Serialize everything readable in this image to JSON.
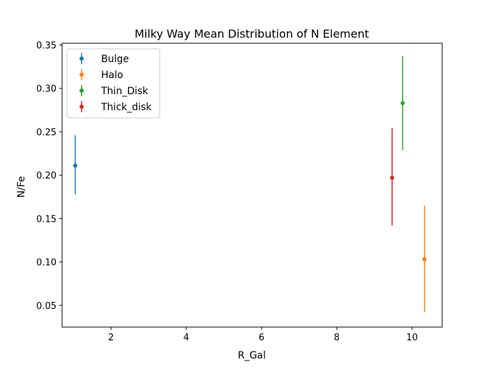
{
  "chart_data": {
    "type": "scatter",
    "title": "Milky Way Mean Distribution of N Element",
    "xlabel": "R_Gal",
    "ylabel": "N/Fe",
    "xlim": [
      0.7,
      10.8
    ],
    "ylim": [
      0.025,
      0.352
    ],
    "x_ticks": [
      2,
      4,
      6,
      8,
      10
    ],
    "x_tick_labels": [
      "2",
      "4",
      "6",
      "8",
      "10"
    ],
    "y_ticks": [
      0.05,
      0.1,
      0.15,
      0.2,
      0.25,
      0.3,
      0.35
    ],
    "y_tick_labels": [
      "0.05",
      "0.10",
      "0.15",
      "0.20",
      "0.25",
      "0.30",
      "0.35"
    ],
    "grid": false,
    "legend_position": "top-left",
    "series": [
      {
        "name": "Bulge",
        "color": "#1f77b4",
        "x": 1.05,
        "y": 0.211,
        "yerr_low": 0.178,
        "yerr_high": 0.246
      },
      {
        "name": "Halo",
        "color": "#ff7f0e",
        "x": 10.33,
        "y": 0.103,
        "yerr_low": 0.042,
        "yerr_high": 0.165
      },
      {
        "name": "Thin_Disk",
        "color": "#2ca02c",
        "x": 9.75,
        "y": 0.283,
        "yerr_low": 0.229,
        "yerr_high": 0.337
      },
      {
        "name": "Thick_disk",
        "color": "#d62728",
        "x": 9.47,
        "y": 0.197,
        "yerr_low": 0.142,
        "yerr_high": 0.254
      }
    ]
  }
}
